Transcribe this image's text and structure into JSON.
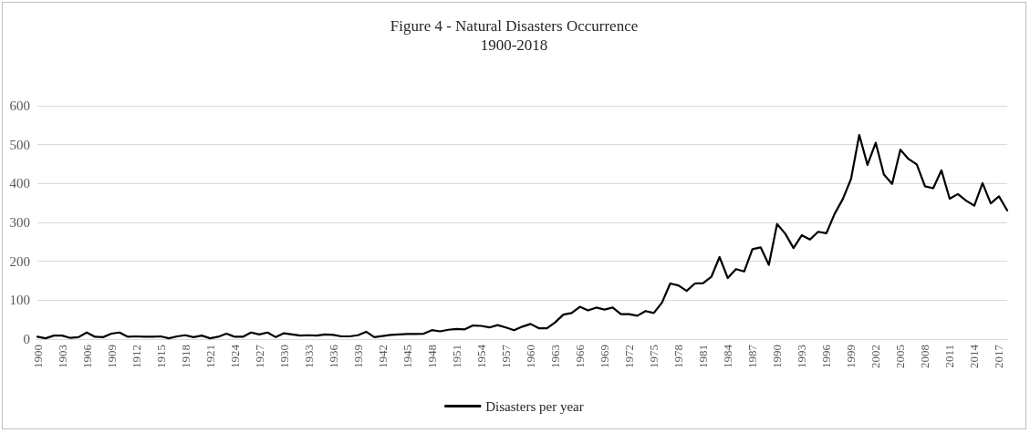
{
  "chart_data": {
    "type": "line",
    "title": "Figure 4 - Natural Disasters Occurrence",
    "subtitle": "1900-2018",
    "categories": [
      "1900",
      null,
      null,
      "1903",
      null,
      null,
      "1906",
      null,
      null,
      "1909",
      null,
      null,
      "1912",
      null,
      null,
      "1915",
      null,
      null,
      "1918",
      null,
      null,
      "1921",
      null,
      null,
      "1924",
      null,
      null,
      "1927",
      null,
      null,
      "1930",
      null,
      null,
      "1933",
      null,
      null,
      "1936",
      null,
      null,
      "1939",
      null,
      null,
      "1942",
      null,
      null,
      "1945",
      null,
      null,
      "1948",
      null,
      null,
      "1951",
      null,
      null,
      "1954",
      null,
      null,
      "1957",
      null,
      null,
      "1960",
      null,
      null,
      "1963",
      null,
      null,
      "1966",
      null,
      null,
      "1969",
      null,
      null,
      "1972",
      null,
      null,
      "1975",
      null,
      null,
      "1978",
      null,
      null,
      "1981",
      null,
      null,
      "1984",
      null,
      null,
      "1987",
      null,
      null,
      "1990",
      null,
      null,
      "1993",
      null,
      null,
      "1996",
      null,
      null,
      "1999",
      null,
      null,
      "2002",
      null,
      null,
      "2005",
      null,
      null,
      "2008",
      null,
      null,
      "2011",
      null,
      null,
      "2014",
      null,
      null,
      "2017",
      null
    ],
    "series": [
      {
        "name": "Disasters per year",
        "color": "#000000",
        "values": [
          6,
          2,
          9,
          9,
          3,
          5,
          17,
          6,
          5,
          14,
          17,
          6,
          7,
          6,
          6,
          7,
          2,
          7,
          10,
          5,
          9,
          2,
          6,
          14,
          6,
          6,
          17,
          12,
          17,
          5,
          15,
          12,
          9,
          10,
          9,
          12,
          11,
          7,
          7,
          10,
          19,
          5,
          8,
          11,
          12,
          13,
          13,
          14,
          23,
          20,
          24,
          26,
          25,
          35,
          34,
          30,
          36,
          30,
          23,
          32,
          39,
          28,
          28,
          43,
          63,
          67,
          83,
          74,
          81,
          76,
          81,
          64,
          64,
          60,
          72,
          67,
          94,
          143,
          138,
          124,
          143,
          144,
          160,
          211,
          157,
          180,
          174,
          231,
          236,
          191,
          296,
          271,
          234,
          267,
          256,
          276,
          272,
          322,
          360,
          412,
          525,
          448,
          505,
          423,
          399,
          487,
          463,
          449,
          393,
          388,
          434,
          361,
          373,
          356,
          343,
          401,
          349,
          367,
          331
        ]
      }
    ],
    "ylim": [
      0,
      600
    ],
    "yticks": [
      0,
      100,
      200,
      300,
      400,
      500,
      600
    ],
    "grid": "y",
    "legend": "bottom",
    "marker": "none",
    "line_style": "solid"
  }
}
